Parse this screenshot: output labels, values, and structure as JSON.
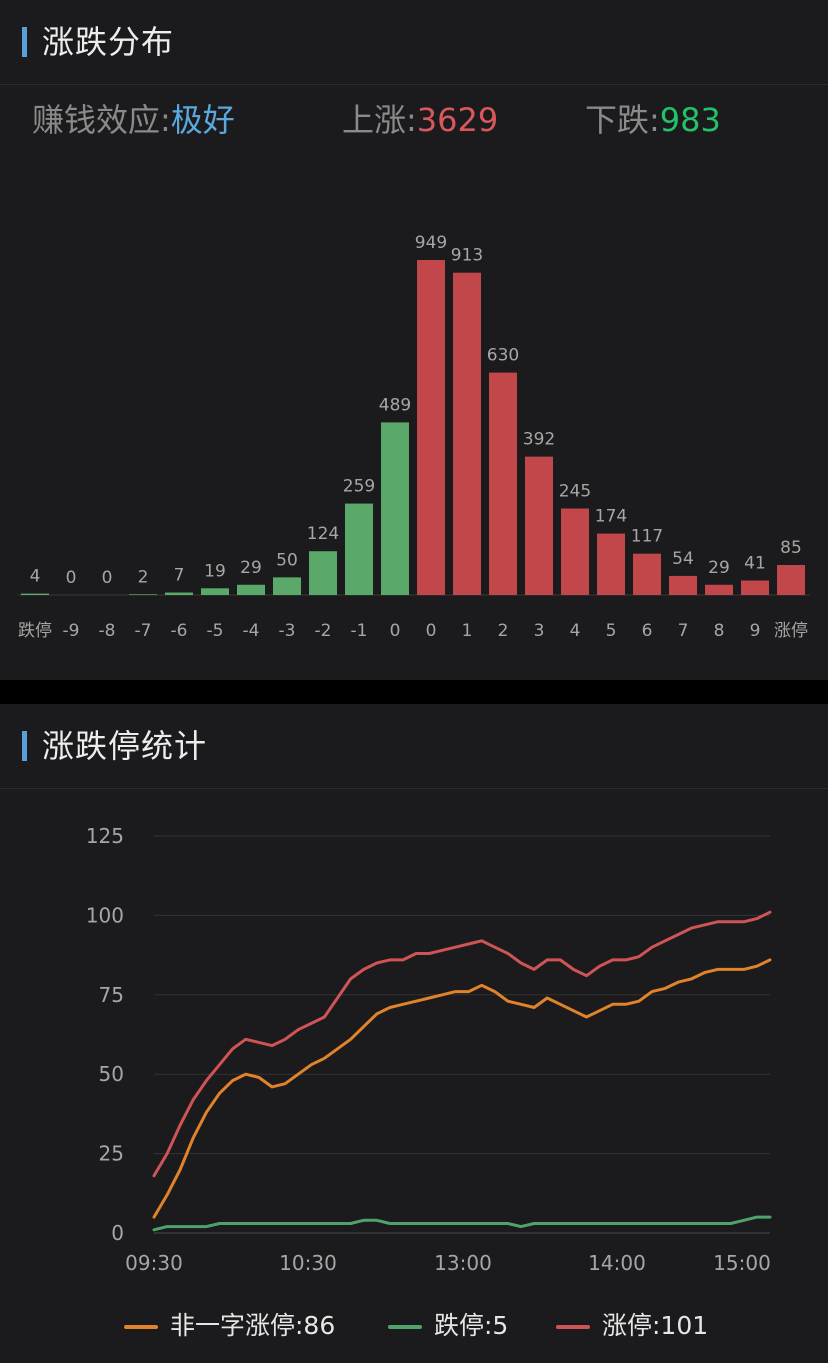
{
  "distribution": {
    "section_title": "涨跌分布",
    "summary": {
      "sentiment_label": "赚钱效应:",
      "sentiment_value": "极好",
      "up_label": "上涨:",
      "up_value": "3629",
      "down_label": "下跌:",
      "down_value": "983"
    }
  },
  "limit_stats": {
    "section_title": "涨跌停统计"
  },
  "colors": {
    "green_bar": "#5aa96a",
    "red_bar": "#c2474b",
    "orange_line": "#e0832b",
    "green_line": "#4fa36a",
    "red_line": "#cf5455",
    "accent": "#5aa0d8",
    "value_blue": "#5aa9dd",
    "value_red": "#d9585c",
    "value_green": "#22c26a"
  },
  "chart_data": [
    {
      "type": "bar",
      "categories": [
        "跌停",
        "-9",
        "-8",
        "-7",
        "-6",
        "-5",
        "-4",
        "-3",
        "-2",
        "-1",
        "0",
        "0",
        "1",
        "2",
        "3",
        "4",
        "5",
        "6",
        "7",
        "8",
        "9",
        "涨停"
      ],
      "values": [
        4,
        0,
        0,
        2,
        7,
        19,
        29,
        50,
        124,
        259,
        489,
        949,
        913,
        630,
        392,
        245,
        174,
        117,
        54,
        29,
        41,
        85
      ],
      "direction": [
        "down",
        "down",
        "down",
        "down",
        "down",
        "down",
        "down",
        "down",
        "down",
        "down",
        "down",
        "up",
        "up",
        "up",
        "up",
        "up",
        "up",
        "up",
        "up",
        "up",
        "up",
        "up"
      ],
      "ylim": [
        0,
        1000
      ],
      "title": "",
      "xlabel": "",
      "ylabel": ""
    },
    {
      "type": "line",
      "x_ticks": [
        "09:30",
        "10:30",
        "13:00",
        "14:00",
        "15:00"
      ],
      "y_ticks": [
        "0",
        "25",
        "50",
        "75",
        "100",
        "125"
      ],
      "ylim": [
        0,
        125
      ],
      "grid": true,
      "legend_position": "bottom",
      "series": [
        {
          "name": "非一字涨停:86",
          "color": "orange",
          "values": [
            5,
            12,
            20,
            30,
            38,
            44,
            48,
            50,
            49,
            46,
            47,
            50,
            53,
            55,
            58,
            61,
            65,
            69,
            71,
            72,
            73,
            74,
            75,
            76,
            76,
            78,
            76,
            73,
            72,
            71,
            74,
            72,
            70,
            68,
            70,
            72,
            72,
            73,
            76,
            77,
            79,
            80,
            82,
            83,
            83,
            83,
            84,
            86
          ]
        },
        {
          "name": "跌停:5",
          "color": "green",
          "values": [
            1,
            2,
            2,
            2,
            2,
            3,
            3,
            3,
            3,
            3,
            3,
            3,
            3,
            3,
            3,
            3,
            4,
            4,
            3,
            3,
            3,
            3,
            3,
            3,
            3,
            3,
            3,
            3,
            2,
            3,
            3,
            3,
            3,
            3,
            3,
            3,
            3,
            3,
            3,
            3,
            3,
            3,
            3,
            3,
            3,
            4,
            5,
            5
          ]
        },
        {
          "name": "涨停:101",
          "color": "red",
          "values": [
            18,
            25,
            34,
            42,
            48,
            53,
            58,
            61,
            60,
            59,
            61,
            64,
            66,
            68,
            74,
            80,
            83,
            85,
            86,
            86,
            88,
            88,
            89,
            90,
            91,
            92,
            90,
            88,
            85,
            83,
            86,
            86,
            83,
            81,
            84,
            86,
            86,
            87,
            90,
            92,
            94,
            96,
            97,
            98,
            98,
            98,
            99,
            101
          ]
        }
      ]
    }
  ]
}
